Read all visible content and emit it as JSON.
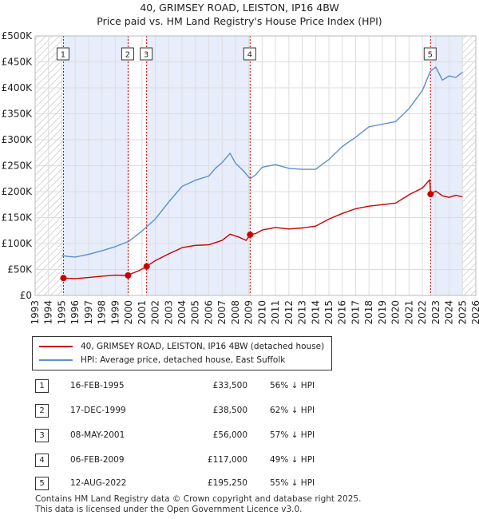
{
  "title_line1": "40, GRIMSEY ROAD, LEISTON, IP16 4BW",
  "title_line2": "Price paid vs. HM Land Registry's House Price Index (HPI)",
  "colors": {
    "property": "#cc0000",
    "hpi": "#5b8fd0",
    "shade": "#e7edfa",
    "marker": "#cc0000"
  },
  "legend": {
    "property": "40, GRIMSEY ROAD, LEISTON, IP16 4BW (detached house)",
    "hpi": "HPI: Average price, detached house, East Suffolk"
  },
  "transactions": [
    {
      "n": "1",
      "date": "16-FEB-1995",
      "price": "£33,500",
      "hpi": "56% ↓ HPI"
    },
    {
      "n": "2",
      "date": "17-DEC-1999",
      "price": "£38,500",
      "hpi": "62% ↓ HPI"
    },
    {
      "n": "3",
      "date": "08-MAY-2001",
      "price": "£56,000",
      "hpi": "57% ↓ HPI"
    },
    {
      "n": "4",
      "date": "06-FEB-2009",
      "price": "£117,000",
      "hpi": "49% ↓ HPI"
    },
    {
      "n": "5",
      "date": "12-AUG-2022",
      "price": "£195,250",
      "hpi": "55% ↓ HPI"
    }
  ],
  "footer": {
    "line1": "Contains HM Land Registry data © Crown copyright and database right 2025.",
    "line2": "This data is licensed under the Open Government Licence v3.0."
  },
  "chart_data": {
    "type": "line",
    "xlim": [
      1993,
      2026
    ],
    "ylim": [
      0,
      500000
    ],
    "y_ticks": [
      0,
      50000,
      100000,
      150000,
      200000,
      250000,
      300000,
      350000,
      400000,
      450000,
      500000
    ],
    "y_tick_labels": [
      "£0",
      "£50K",
      "£100K",
      "£150K",
      "£200K",
      "£250K",
      "£300K",
      "£350K",
      "£400K",
      "£450K",
      "£500K"
    ],
    "x_ticks": [
      1993,
      1994,
      1995,
      1996,
      1997,
      1998,
      1999,
      2000,
      2001,
      2002,
      2003,
      2004,
      2005,
      2006,
      2007,
      2008,
      2009,
      2010,
      2011,
      2012,
      2013,
      2014,
      2015,
      2016,
      2017,
      2018,
      2019,
      2020,
      2021,
      2022,
      2023,
      2024,
      2025,
      2026
    ],
    "grid": true,
    "series": [
      {
        "name": "40, GRIMSEY ROAD, LEISTON, IP16 4BW (detached house)",
        "x": [
          1995.12,
          1995.5,
          1996,
          1997,
          1998,
          1999,
          1999.96,
          2000.3,
          2000.8,
          2001.35,
          2002,
          2003,
          2004,
          2005,
          2006,
          2007,
          2007.6,
          2008.3,
          2008.8,
          2009.1,
          2009.5,
          2010,
          2011,
          2012,
          2013,
          2014,
          2015,
          2016,
          2017,
          2018,
          2019,
          2020,
          2021,
          2022,
          2022.55,
          2022.61,
          2023,
          2023.5,
          2024,
          2024.5,
          2025
        ],
        "y": [
          33500,
          33000,
          32500,
          34500,
          37000,
          39000,
          38500,
          43000,
          48000,
          56000,
          67000,
          80000,
          92000,
          96500,
          97500,
          106000,
          118000,
          112000,
          106000,
          117000,
          119000,
          126000,
          131000,
          128000,
          130000,
          133500,
          147000,
          158000,
          167000,
          172000,
          175000,
          178000,
          194000,
          207000,
          223000,
          195250,
          201000,
          192000,
          189000,
          193000,
          190000
        ]
      },
      {
        "name": "HPI: Average price, detached house, East Suffolk",
        "x": [
          1995,
          1995.5,
          1996,
          1997,
          1998,
          1999,
          2000,
          2001,
          2002,
          2003,
          2004,
          2005,
          2006,
          2006.5,
          2007,
          2007.6,
          2008,
          2008.6,
          2009.1,
          2009.5,
          2010,
          2011,
          2012,
          2013,
          2014,
          2015,
          2016,
          2017,
          2018,
          2019,
          2020,
          2021,
          2022,
          2022.6,
          2023,
          2023.5,
          2024,
          2024.5,
          2025
        ],
        "y": [
          77000,
          75000,
          74000,
          79000,
          86000,
          94000,
          104000,
          124000,
          147000,
          180000,
          210000,
          222000,
          230000,
          245000,
          256000,
          274000,
          255000,
          240000,
          225000,
          232000,
          247000,
          252000,
          245000,
          243000,
          243000,
          262000,
          287000,
          305000,
          325000,
          330000,
          335000,
          360000,
          395000,
          432000,
          440000,
          415000,
          423000,
          420000,
          430000
        ]
      }
    ],
    "markers": [
      {
        "label": "1",
        "x": 1995.12,
        "y": 33500
      },
      {
        "label": "2",
        "x": 1999.96,
        "y": 38500
      },
      {
        "label": "3",
        "x": 2001.35,
        "y": 56000
      },
      {
        "label": "4",
        "x": 2009.1,
        "y": 117000
      },
      {
        "label": "5",
        "x": 2022.61,
        "y": 195250
      }
    ],
    "shaded_ranges": [
      [
        1995.12,
        1999.96
      ],
      [
        2001.35,
        2009.1
      ],
      [
        2022.61,
        2025
      ]
    ],
    "hatched_ranges": [
      [
        1993,
        1995.12
      ],
      [
        2025,
        2026
      ]
    ]
  }
}
